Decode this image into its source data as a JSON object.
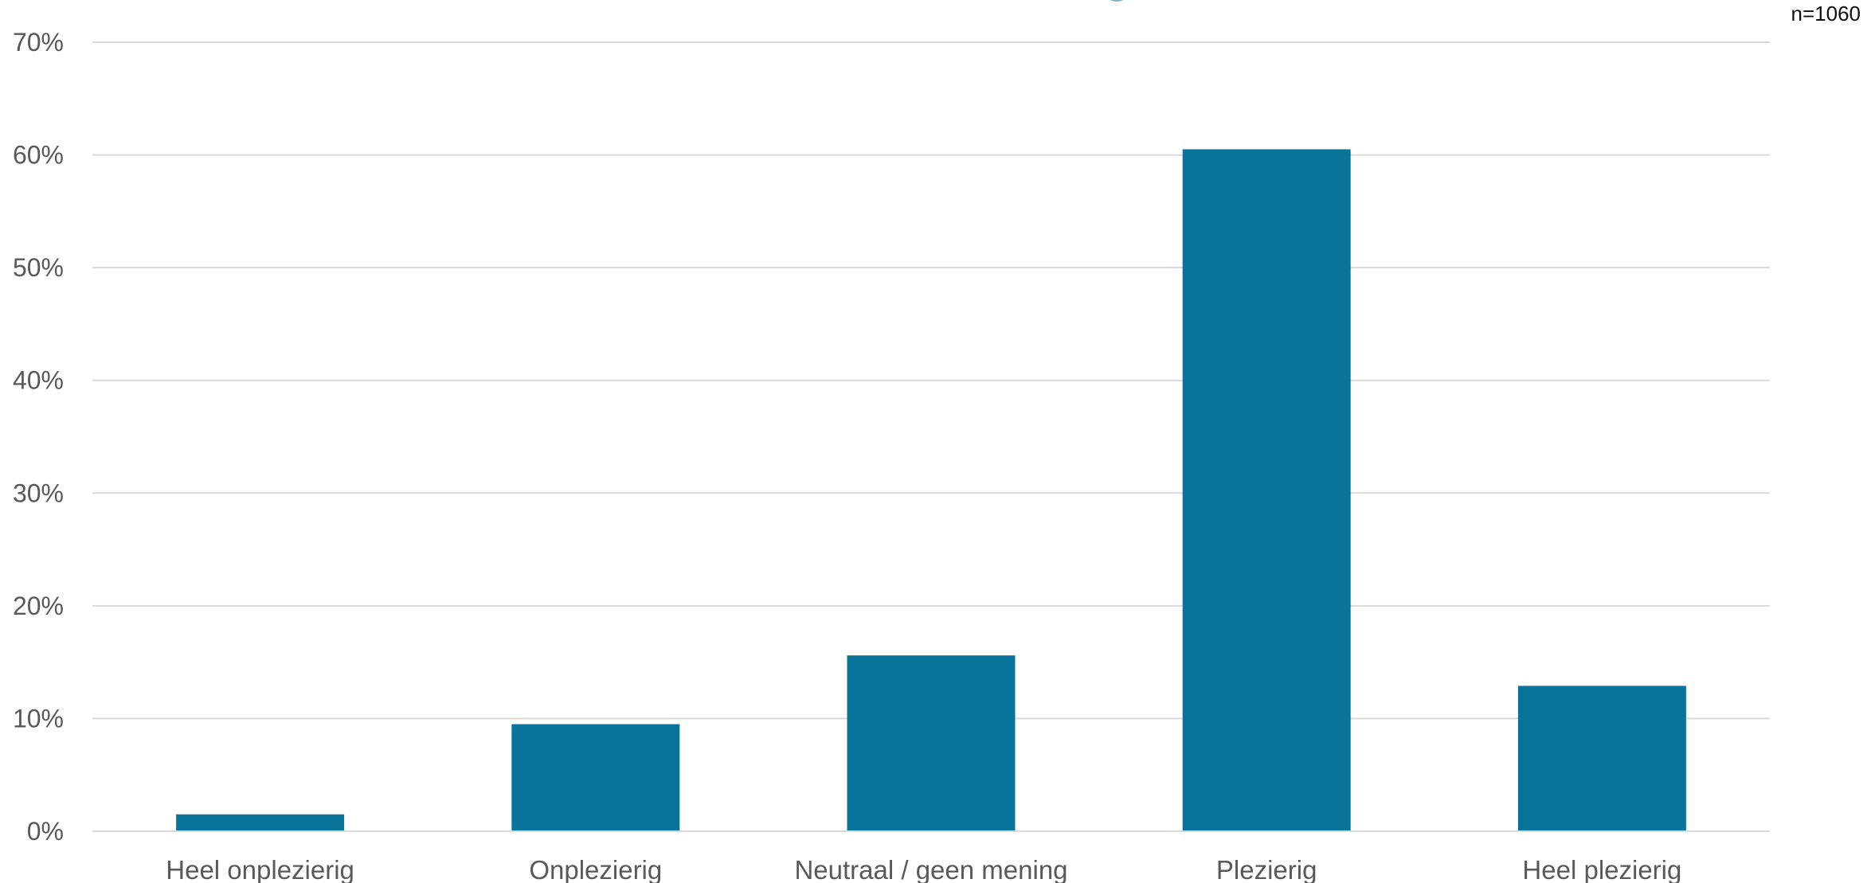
{
  "sample_size": "n=1060",
  "colors": {
    "bar": "#0A7399",
    "grid": "#D9D9D9",
    "axis_text": "#595959",
    "title_partial": "#7FB8C9"
  },
  "chart_data": {
    "type": "bar",
    "categories": [
      "Heel onplezierig",
      "Onplezierig",
      "Neutraal / geen mening",
      "Plezierig",
      "Heel plezierig"
    ],
    "values": [
      1.5,
      9.5,
      15.6,
      60.5,
      12.9
    ],
    "ylim": [
      0,
      70
    ],
    "yticks": [
      0,
      10,
      20,
      30,
      40,
      50,
      60,
      70
    ],
    "ytick_labels": [
      "0%",
      "10%",
      "20%",
      "30%",
      "40%",
      "50%",
      "60%",
      "70%"
    ],
    "grid": true,
    "legend": "none"
  }
}
